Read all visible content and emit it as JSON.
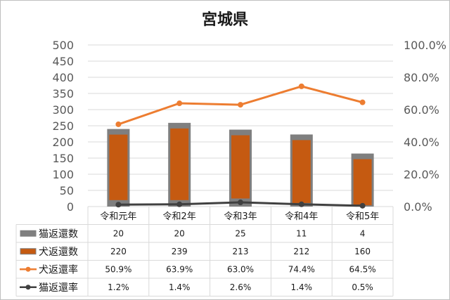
{
  "chart_data": {
    "type": "bar",
    "title": "宮城県",
    "categories": [
      "令和元年",
      "令和2年",
      "令和3年",
      "令和4年",
      "令和5年"
    ],
    "bar_series": [
      {
        "name": "猫返還数",
        "values": [
          20,
          20,
          25,
          11,
          4
        ],
        "color": "#7f7f7f"
      },
      {
        "name": "犬返還数",
        "values": [
          220,
          239,
          213,
          212,
          160
        ],
        "color": "#c55a11"
      }
    ],
    "line_series": [
      {
        "name": "犬返還率",
        "values": [
          50.9,
          63.9,
          63.0,
          74.4,
          64.5
        ],
        "labels": [
          "50.9%",
          "63.9%",
          "63.0%",
          "74.4%",
          "64.5%"
        ],
        "color": "#ed7d31"
      },
      {
        "name": "猫返還率",
        "values": [
          1.2,
          1.4,
          2.6,
          1.4,
          0.5
        ],
        "labels": [
          "1.2%",
          "1.4%",
          "2.6%",
          "1.4%",
          "0.5%"
        ],
        "color": "#404040"
      }
    ],
    "table_rows": [
      {
        "name": "猫返還数",
        "cells": [
          "20",
          "20",
          "25",
          "11",
          "4"
        ]
      },
      {
        "name": "犬返還数",
        "cells": [
          "220",
          "239",
          "213",
          "212",
          "160"
        ]
      },
      {
        "name": "犬返還率",
        "cells": [
          "50.9%",
          "63.9%",
          "63.0%",
          "74.4%",
          "64.5%"
        ]
      },
      {
        "name": "猫返還率",
        "cells": [
          "1.2%",
          "1.4%",
          "2.6%",
          "1.4%",
          "0.5%"
        ]
      }
    ],
    "y_left": {
      "min": 0,
      "max": 500,
      "step": 50,
      "tick_labels": [
        "0",
        "50",
        "100",
        "150",
        "200",
        "250",
        "300",
        "350",
        "400",
        "450",
        "500"
      ]
    },
    "y_right": {
      "min": 0,
      "max": 100,
      "step": 20,
      "tick_labels": [
        "0.0%",
        "20.0%",
        "40.0%",
        "60.0%",
        "80.0%",
        "100.0%"
      ]
    },
    "bar_stacked": true,
    "grid": true,
    "legend_placement": "data-table-left"
  }
}
